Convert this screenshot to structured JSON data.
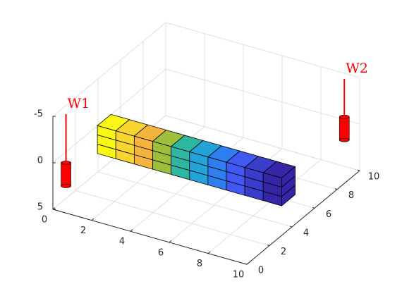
{
  "chart_data": {
    "type": "grid3d",
    "xlim": [
      0,
      10
    ],
    "ylim": [
      0,
      10
    ],
    "zlim": [
      -5,
      5
    ],
    "xticks": [
      0,
      2,
      4,
      6,
      8,
      10
    ],
    "yticks": [
      0,
      2,
      4,
      6,
      8,
      10
    ],
    "zticks": [
      -5,
      0,
      5
    ],
    "z_reversed": true,
    "grid": true,
    "cell_colors": [
      "#f9f814",
      "#f8d530",
      "#f5b43f",
      "#9ebf3b",
      "#2fb6a3",
      "#24a4d6",
      "#2f7ef0",
      "#4258f2",
      "#3a3dca",
      "#3526a8"
    ],
    "wells": [
      {
        "name": "W1",
        "color": "#ff0000"
      },
      {
        "name": "W2",
        "color": "#ff0000"
      }
    ]
  }
}
